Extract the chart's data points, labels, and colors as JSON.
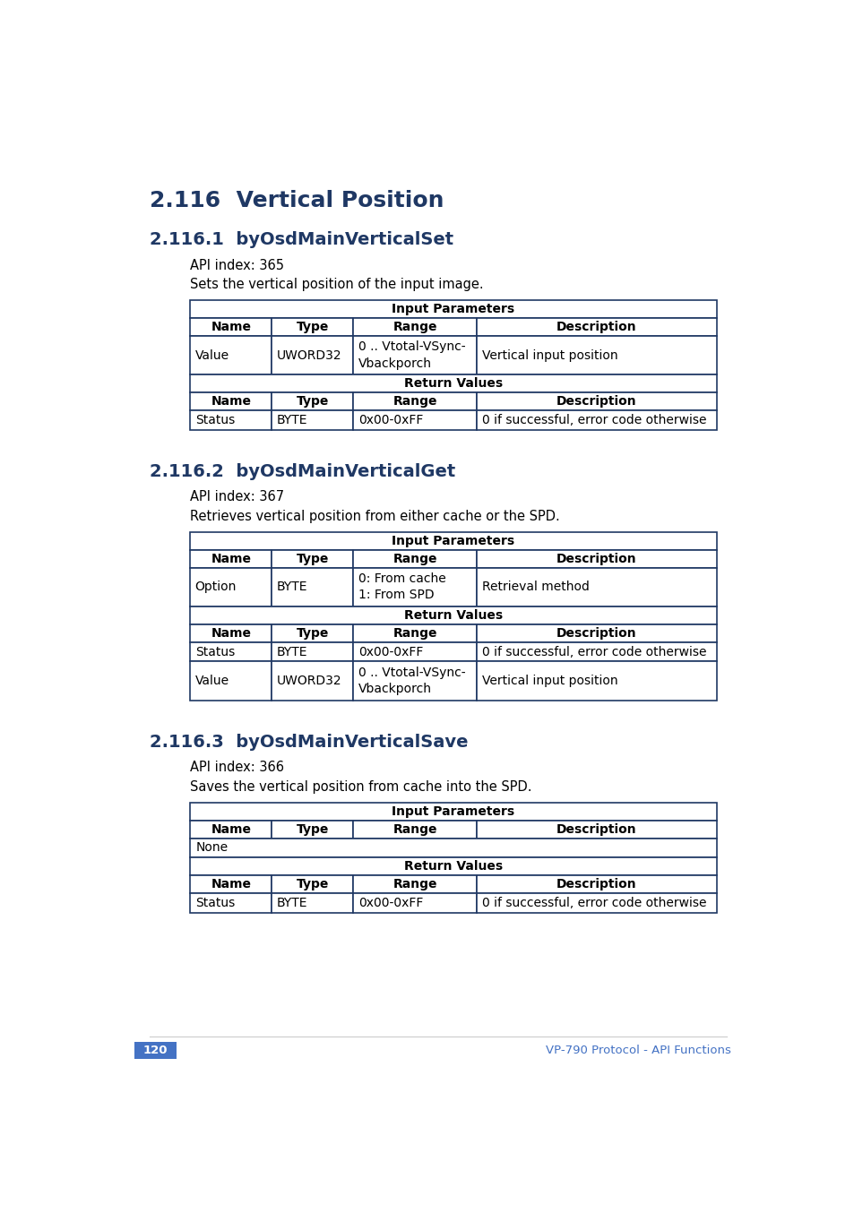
{
  "title_main": "2.116  Vertical Position",
  "heading_color": "#1f3864",
  "section1_title": "2.116.1  byOsdMainVerticalSet",
  "section1_api": "API index: 365",
  "section1_desc": "Sets the vertical position of the input image.",
  "section2_title": "2.116.2  byOsdMainVerticalGet",
  "section2_api": "API index: 367",
  "section2_desc": "Retrieves vertical position from either cache or the SPD.",
  "section3_title": "2.116.3  byOsdMainVerticalSave",
  "section3_api": "API index: 366",
  "section3_desc": "Saves the vertical position from cache into the SPD.",
  "border_color": "#1f3864",
  "footer_page": "120",
  "footer_text": "VP-790 Protocol - API Functions",
  "footer_color": "#4472c4",
  "table1_input": [
    [
      "Value",
      "UWORD32",
      "0 .. Vtotal-VSync-\nVbackporch",
      "Vertical input position"
    ]
  ],
  "table1_return": [
    [
      "Status",
      "BYTE",
      "0x00-0xFF",
      "0 if successful, error code otherwise"
    ]
  ],
  "table2_input": [
    [
      "Option",
      "BYTE",
      "0: From cache\n1: From SPD",
      "Retrieval method"
    ]
  ],
  "table2_return": [
    [
      "Status",
      "BYTE",
      "0x00-0xFF",
      "0 if successful, error code otherwise"
    ],
    [
      "Value",
      "UWORD32",
      "0 .. Vtotal-VSync-\nVbackporch",
      "Vertical input position"
    ]
  ],
  "table3_return": [
    [
      "Status",
      "BYTE",
      "0x00-0xFF",
      "0 if successful, error code otherwise"
    ]
  ],
  "col_names": [
    "Name",
    "Type",
    "Range",
    "Description"
  ]
}
